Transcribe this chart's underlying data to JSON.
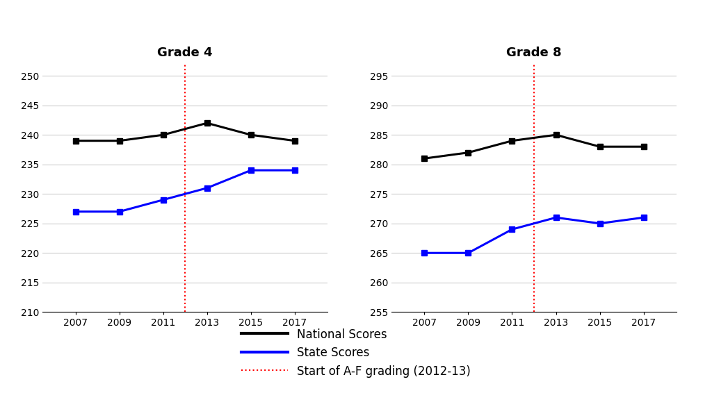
{
  "years": [
    2007,
    2009,
    2011,
    2013,
    2015,
    2017
  ],
  "vline_x": 2012.0,
  "g4_national": [
    239,
    239,
    240,
    242,
    240,
    239
  ],
  "g4_state": [
    227,
    227,
    229,
    231,
    234,
    234
  ],
  "g8_national": [
    281,
    282,
    284,
    285,
    283,
    283
  ],
  "g8_state": [
    265,
    265,
    269,
    271,
    270,
    271
  ],
  "g4_ylim": [
    210,
    252
  ],
  "g4_yticks": [
    210,
    215,
    220,
    225,
    230,
    235,
    240,
    245,
    250
  ],
  "g8_ylim": [
    255,
    297
  ],
  "g8_yticks": [
    255,
    260,
    265,
    270,
    275,
    280,
    285,
    290,
    295
  ],
  "national_color": "#000000",
  "state_color": "#0000FF",
  "vline_color": "#FF0000",
  "grade4_title": "Grade 4",
  "grade8_title": "Grade 8",
  "legend_national": "National Scores",
  "legend_state": "State Scores",
  "legend_vline": "Start of A-F grading (2012-13)",
  "bg_color": "#FFFFFF",
  "line_width": 2.2,
  "marker": "s",
  "marker_size": 6,
  "title_fontsize": 13,
  "tick_fontsize": 10,
  "legend_fontsize": 12
}
